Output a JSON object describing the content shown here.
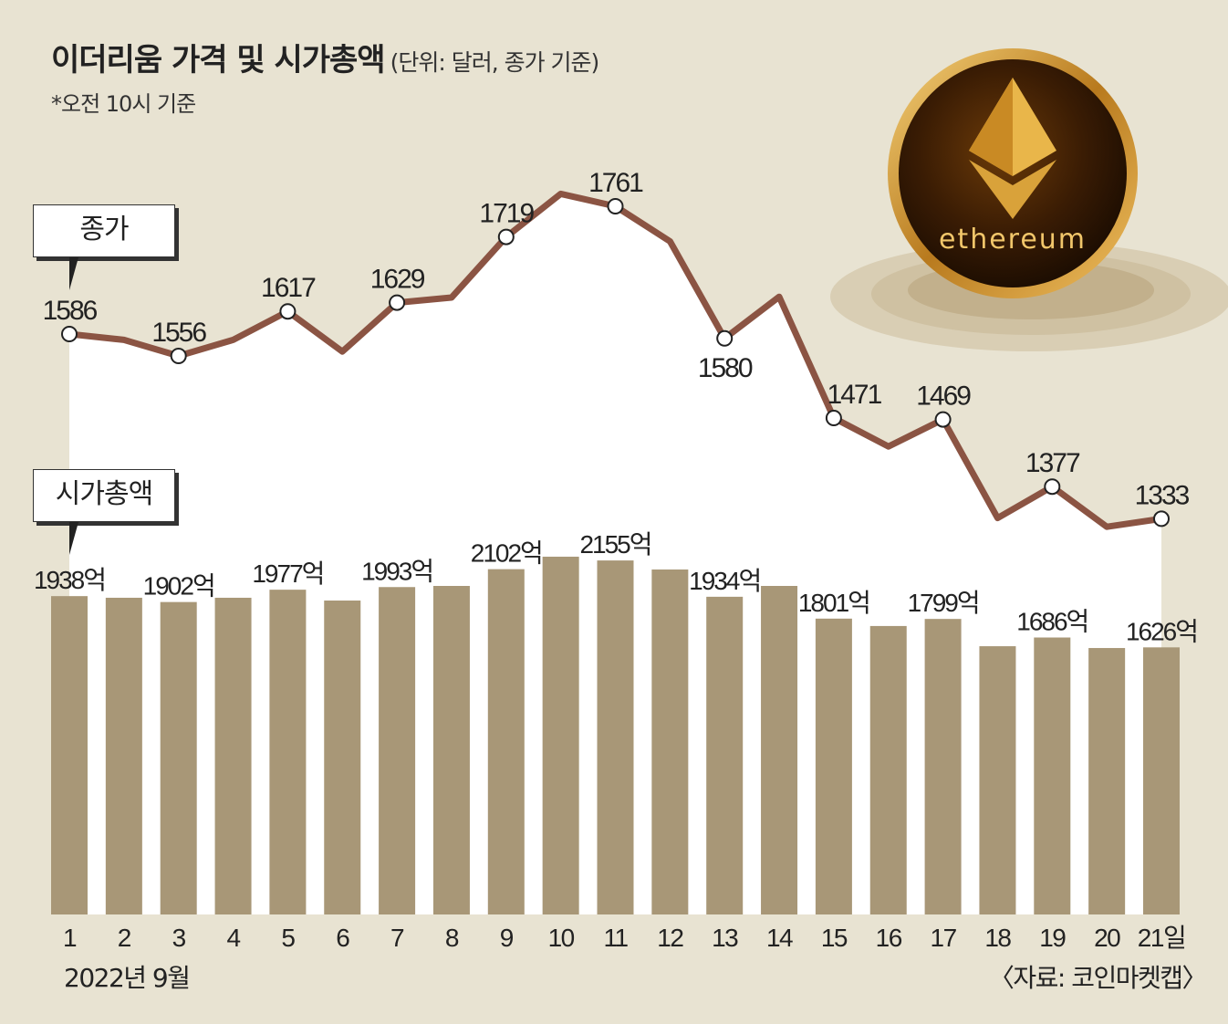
{
  "header": {
    "title": "이더리움 가격 및 시가총액",
    "unit": "(단위: 달러, 종가 기준)",
    "note": "*오전 10시 기준"
  },
  "callouts": {
    "price": "종가",
    "cap": "시가총액"
  },
  "logo_text": "ethereum",
  "footer": {
    "period": "2022년 9월",
    "source": "〈자료: 코인마켓캡〉"
  },
  "colors": {
    "background": "#e8e3d2",
    "line": "#8b5443",
    "bar": "#a89777",
    "area": "#ffffff"
  },
  "chart_data": [
    {
      "type": "line",
      "name": "종가",
      "categories": [
        "1",
        "2",
        "3",
        "4",
        "5",
        "6",
        "7",
        "8",
        "9",
        "10",
        "11",
        "12",
        "13",
        "14",
        "15",
        "16",
        "17",
        "18",
        "19",
        "20",
        "21일"
      ],
      "values": [
        1586,
        1578,
        1556,
        1578,
        1617,
        1562,
        1629,
        1636,
        1719,
        1778,
        1761,
        1713,
        1580,
        1637,
        1471,
        1432,
        1469,
        1334,
        1377,
        1322,
        1333
      ],
      "data_labels": [
        "1586",
        null,
        "1556",
        null,
        "1617",
        null,
        "1629",
        null,
        "1719",
        null,
        "1761",
        null,
        "1580",
        null,
        "1471",
        null,
        "1469",
        null,
        "1377",
        null,
        "1333"
      ]
    },
    {
      "type": "bar",
      "name": "시가총액",
      "ylim": [
        0,
        2200
      ],
      "categories": [
        "1",
        "2",
        "3",
        "4",
        "5",
        "6",
        "7",
        "8",
        "9",
        "10",
        "11",
        "12",
        "13",
        "14",
        "15",
        "16",
        "17",
        "18",
        "19",
        "20",
        "21일"
      ],
      "values": [
        1938,
        1928,
        1902,
        1928,
        1977,
        1911,
        1993,
        2000,
        2102,
        2178,
        2155,
        2100,
        1934,
        2000,
        1801,
        1756,
        1799,
        1633,
        1686,
        1622,
        1626
      ],
      "data_labels": [
        "1938억",
        null,
        "1902억",
        null,
        "1977억",
        null,
        "1993억",
        null,
        "2102억",
        null,
        "2155억",
        null,
        "1934억",
        null,
        "1801억",
        null,
        "1799억",
        null,
        "1686억",
        null,
        "1626억"
      ]
    }
  ]
}
